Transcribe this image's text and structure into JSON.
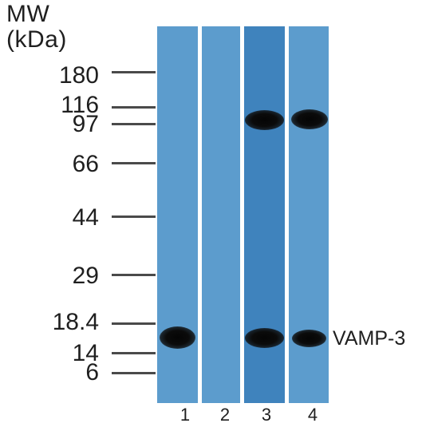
{
  "header": {
    "line1": "MW",
    "line2": "(kDa)"
  },
  "markers": [
    {
      "label": "180"
    },
    {
      "label": "116"
    },
    {
      "label": "97"
    },
    {
      "label": "66"
    },
    {
      "label": "44"
    },
    {
      "label": "29"
    },
    {
      "label": "18.4"
    },
    {
      "label": "14"
    },
    {
      "label": "6"
    }
  ],
  "lanes": [
    {
      "number": "1",
      "color": "#5c9ccd"
    },
    {
      "number": "2",
      "color": "#5c9ccd"
    },
    {
      "number": "3",
      "color": "#3f83bd"
    },
    {
      "number": "4",
      "color": "#5c9ccd"
    }
  ],
  "target_label": "VAMP-3"
}
